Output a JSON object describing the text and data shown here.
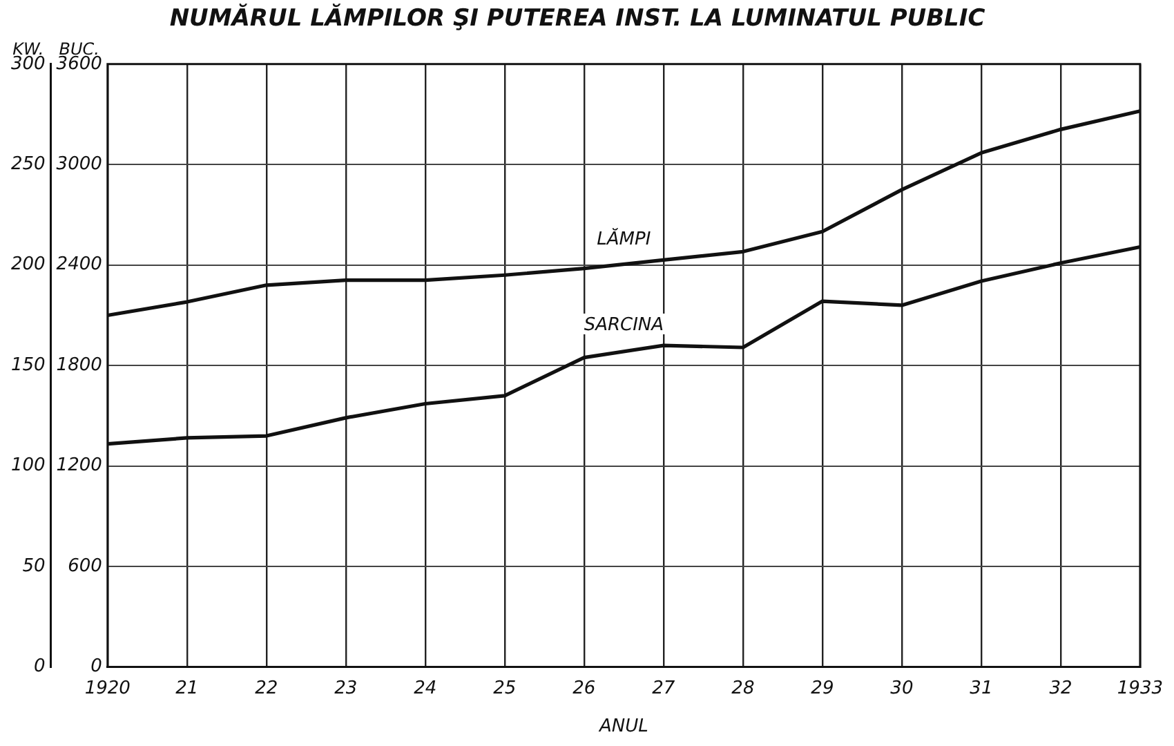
{
  "chart_data": {
    "type": "line",
    "title": "NUMĂRUL LĂMPILOR ŞI PUTEREA INST. LA LUMINATUL PUBLIC",
    "xlabel": "ANUL",
    "ylabel": "KW.",
    "y2label": "BUC.",
    "categories": [
      "1920",
      "21",
      "22",
      "23",
      "24",
      "25",
      "26",
      "27",
      "28",
      "29",
      "30",
      "31",
      "32",
      "1933"
    ],
    "series": [
      {
        "name": "LĂMPI",
        "color": "#111111",
        "axis": "y2",
        "values": [
          2100,
          2180,
          2280,
          2310,
          2310,
          2340,
          2380,
          2430,
          2480,
          2600,
          2850,
          3070,
          3210,
          3320
        ]
      },
      {
        "name": "SARCINA",
        "color": "#111111",
        "values": [
          111,
          114,
          115,
          124,
          131,
          135,
          154,
          160,
          159,
          182,
          180,
          192,
          201,
          209
        ]
      }
    ],
    "ylim": [
      0,
      300
    ],
    "yticks": [
      0,
      50,
      100,
      150,
      200,
      250,
      300
    ],
    "y2lim": [
      0,
      3600
    ],
    "y2ticks": [
      0,
      600,
      1200,
      1800,
      2400,
      3000,
      3600
    ],
    "grid": true,
    "legend": false,
    "marker": "none",
    "line_style": "solid"
  }
}
